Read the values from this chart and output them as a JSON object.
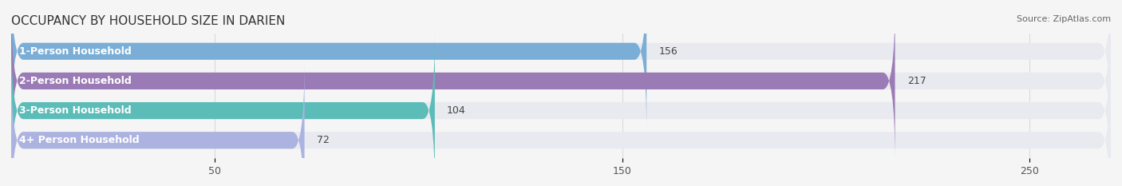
{
  "title": "OCCUPANCY BY HOUSEHOLD SIZE IN DARIEN",
  "source": "Source: ZipAtlas.com",
  "categories": [
    "1-Person Household",
    "2-Person Household",
    "3-Person Household",
    "4+ Person Household"
  ],
  "values": [
    156,
    217,
    104,
    72
  ],
  "bar_colors": [
    "#7aaed6",
    "#9b7bb5",
    "#5bbcb8",
    "#adb3e0"
  ],
  "bar_bg_color": "#e8eaf0",
  "xlim": [
    0,
    270
  ],
  "xticks": [
    50,
    150,
    250
  ],
  "title_fontsize": 11,
  "label_fontsize": 9,
  "value_fontsize": 9,
  "source_fontsize": 8,
  "background_color": "#f5f5f5"
}
